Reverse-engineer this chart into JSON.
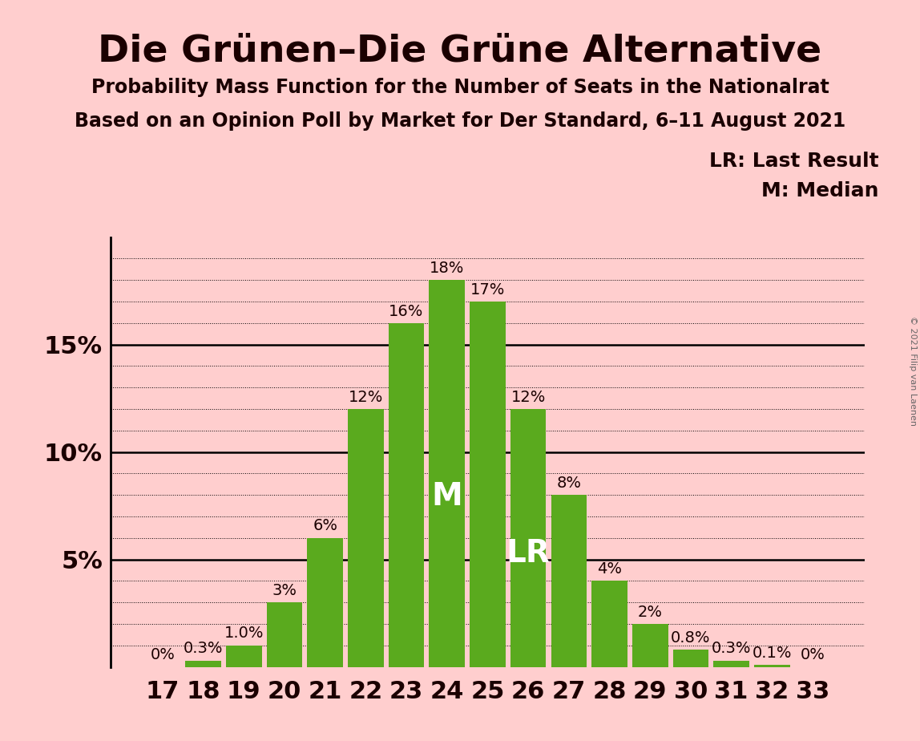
{
  "title": "Die Grünen–Die Grüne Alternative",
  "subtitle1": "Probability Mass Function for the Number of Seats in the Nationalrat",
  "subtitle2": "Based on an Opinion Poll by Market for Der Standard, 6–11 August 2021",
  "copyright": "© 2021 Filip van Laenen",
  "categories": [
    17,
    18,
    19,
    20,
    21,
    22,
    23,
    24,
    25,
    26,
    27,
    28,
    29,
    30,
    31,
    32,
    33
  ],
  "values": [
    0.0,
    0.3,
    1.0,
    3.0,
    6.0,
    12.0,
    16.0,
    18.0,
    17.0,
    12.0,
    8.0,
    4.0,
    2.0,
    0.8,
    0.3,
    0.1,
    0.0
  ],
  "labels": [
    "0%",
    "0.3%",
    "1.0%",
    "3%",
    "6%",
    "12%",
    "16%",
    "18%",
    "17%",
    "12%",
    "8%",
    "4%",
    "2%",
    "0.8%",
    "0.3%",
    "0.1%",
    "0%"
  ],
  "bar_color": "#5aaa1e",
  "background_color": "#ffcece",
  "text_color": "#1a0000",
  "median_bar": 24,
  "lr_bar": 26,
  "median_label": "M",
  "lr_label": "LR",
  "legend_lr": "LR: Last Result",
  "legend_m": "M: Median",
  "ylim": [
    0,
    20
  ],
  "title_fontsize": 34,
  "subtitle_fontsize": 17,
  "bar_label_fontsize": 14,
  "axis_fontsize": 22,
  "legend_fontsize": 18,
  "inner_label_fontsize": 28
}
